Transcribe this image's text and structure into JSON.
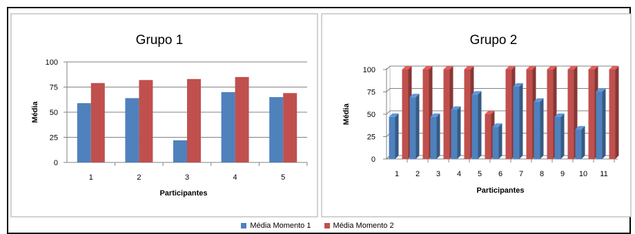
{
  "legend": {
    "s1": "Média Momento 1",
    "s2": "Média Momento 2"
  },
  "chart_data": [
    {
      "type": "bar",
      "title": "Grupo 1",
      "xlabel": "Participantes",
      "ylabel": "Média",
      "ylim": [
        0,
        100
      ],
      "yticks": [
        "0",
        "25",
        "50",
        "75",
        "100"
      ],
      "categories": [
        "1",
        "2",
        "3",
        "4",
        "5"
      ],
      "series": [
        {
          "name": "Média Momento 1",
          "color": "#4f81bd",
          "values": [
            59,
            64,
            22,
            70,
            65
          ]
        },
        {
          "name": "Média Momento 2",
          "color": "#c0504d",
          "values": [
            79,
            82,
            83,
            85,
            69
          ]
        }
      ],
      "grid": true
    },
    {
      "type": "bar",
      "style": "3d",
      "title": "Grupo 2",
      "xlabel": "Participantes",
      "ylabel": "Média",
      "ylim": [
        0,
        100
      ],
      "yticks": [
        "0",
        "25",
        "50",
        "75",
        "100"
      ],
      "categories": [
        "1",
        "2",
        "3",
        "4",
        "5",
        "6",
        "7",
        "8",
        "9",
        "10",
        "11"
      ],
      "series": [
        {
          "name": "Média Momento 1",
          "color": "#4f81bd",
          "values": [
            47,
            69,
            47,
            55,
            72,
            36,
            81,
            64,
            47,
            33,
            75
          ]
        },
        {
          "name": "Média Momento 2",
          "color": "#c0504d",
          "values": [
            100,
            100,
            100,
            100,
            50,
            100,
            100,
            100,
            100,
            100,
            100
          ]
        }
      ],
      "grid": true
    }
  ]
}
